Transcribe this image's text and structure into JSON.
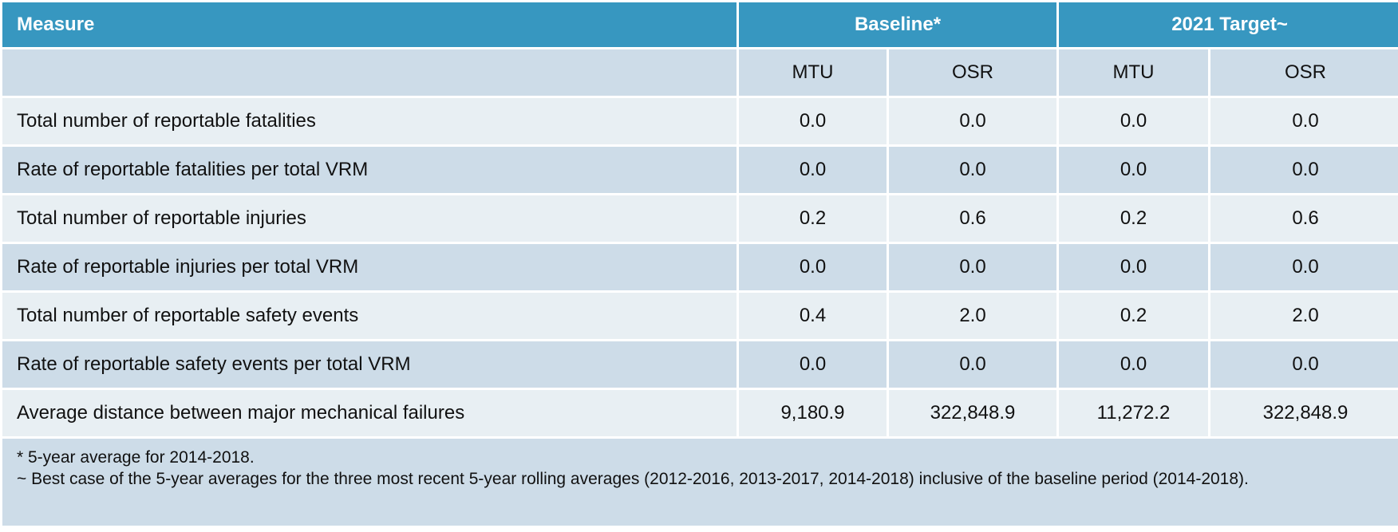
{
  "table": {
    "header": [
      "Measure",
      "Baseline*",
      "2021 Target~"
    ],
    "subheader": [
      "MTU",
      "OSR",
      "MTU",
      "OSR"
    ],
    "rows": [
      [
        "Total number of reportable fatalities",
        "0.0",
        "0.0",
        "0.0",
        "0.0"
      ],
      [
        "Rate of reportable fatalities per total VRM",
        "0.0",
        "0.0",
        "0.0",
        "0.0"
      ],
      [
        "Total number of reportable injuries",
        "0.2",
        "0.6",
        "0.2",
        "0.6"
      ],
      [
        "Rate of reportable injuries per total VRM",
        "0.0",
        "0.0",
        "0.0",
        "0.0"
      ],
      [
        "Total number of reportable safety events",
        "0.4",
        "2.0",
        "0.2",
        "2.0"
      ],
      [
        "Rate of reportable safety events per total VRM",
        "0.0",
        "0.0",
        "0.0",
        "0.0"
      ],
      [
        "Average distance between major mechanical failures",
        "9,180.9",
        "322,848.9",
        "11,272.2",
        "322,848.9"
      ]
    ],
    "notes": [
      "* 5-year average for 2014-2018.",
      "~ Best case of the 5-year averages for the three most recent 5-year rolling averages (2012-2016, 2013-2017, 2014-2018) inclusive of the baseline period (2014-2018)."
    ]
  }
}
